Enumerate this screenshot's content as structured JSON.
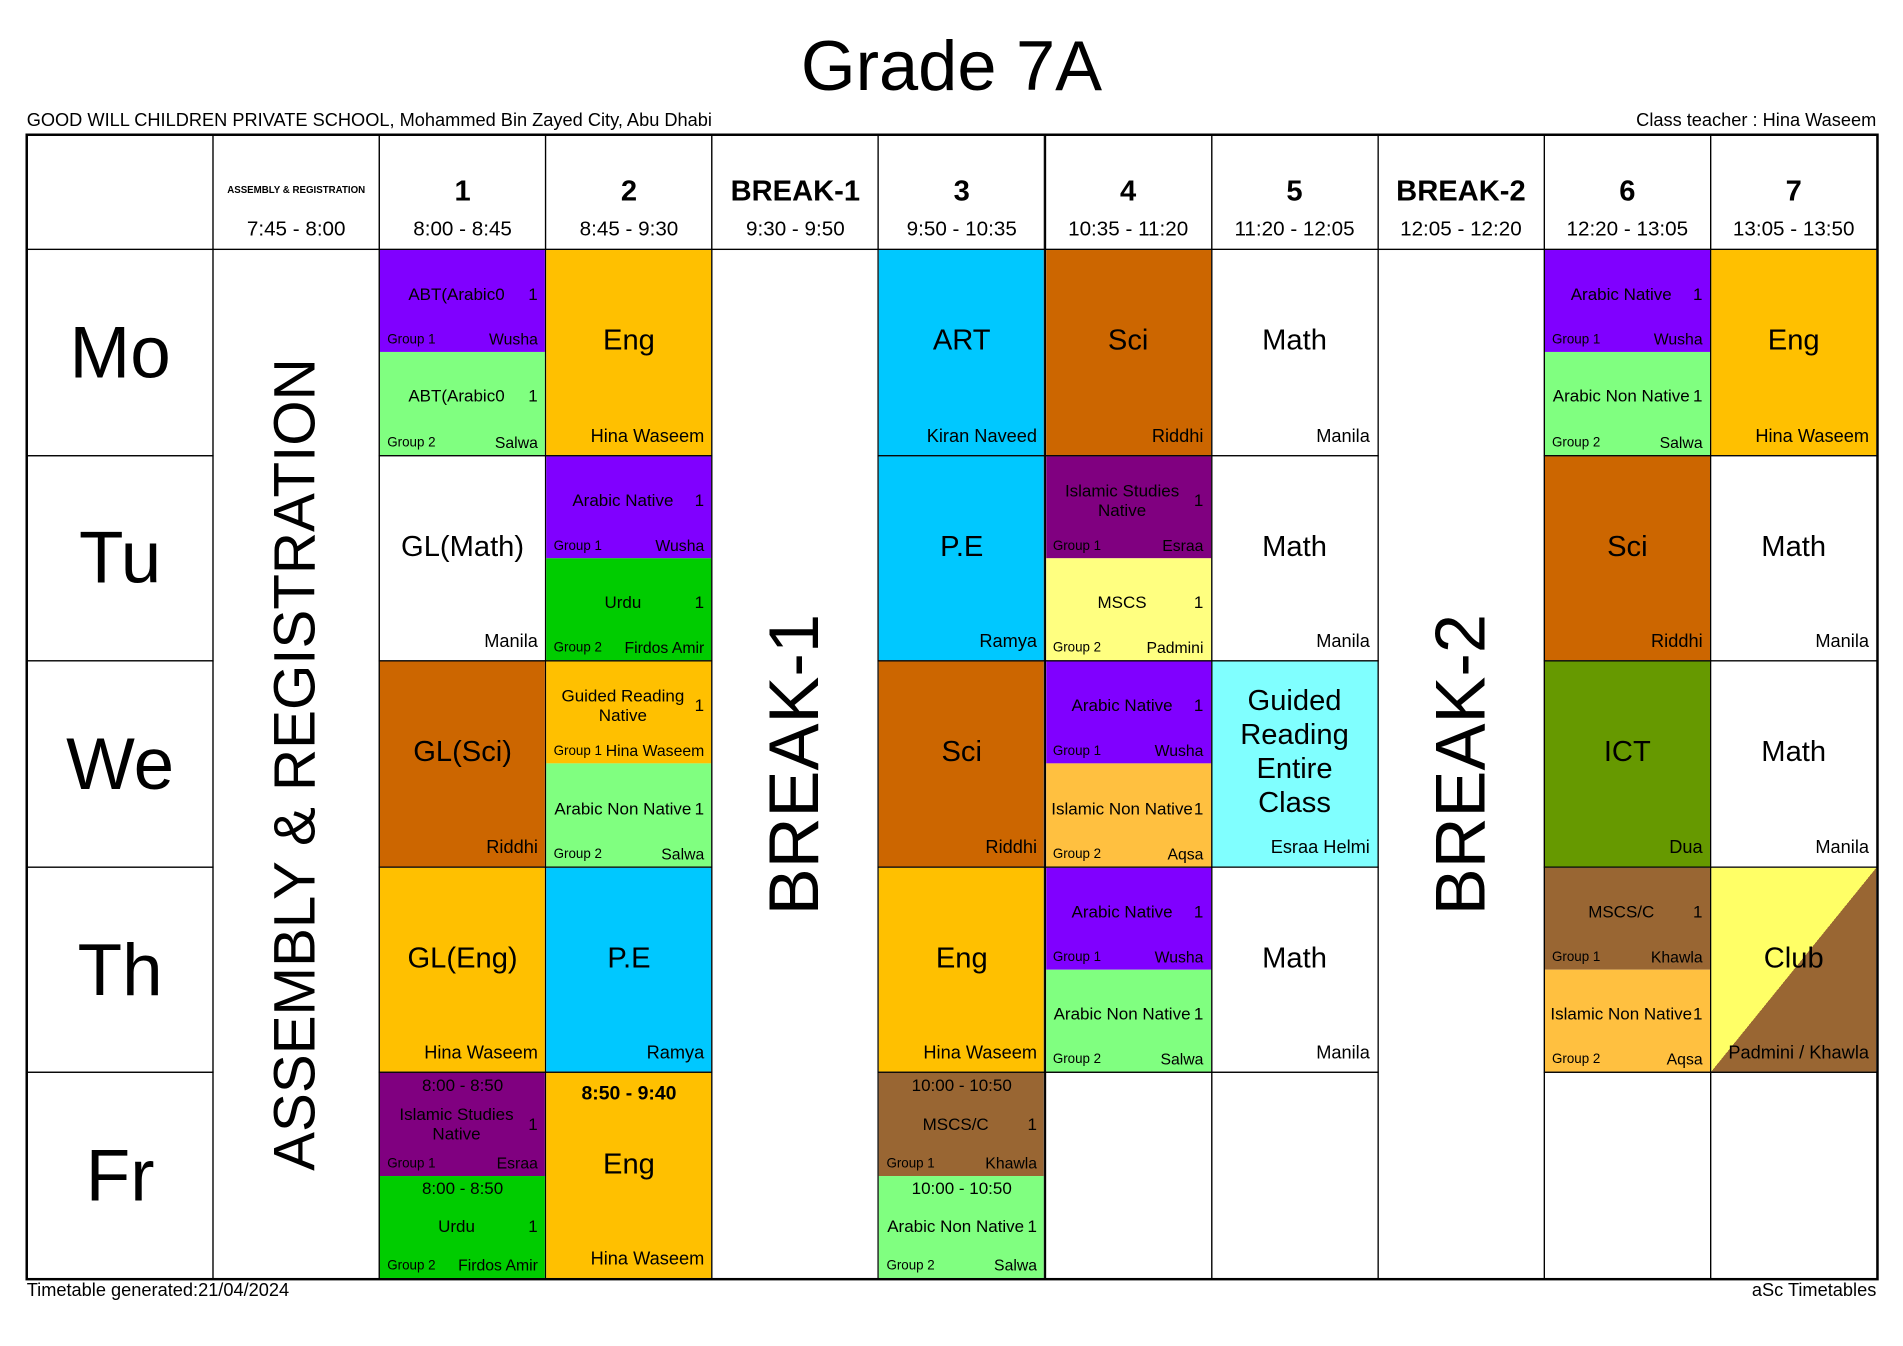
{
  "title": "Grade 7A",
  "school": "GOOD WILL CHILDREN PRIVATE SCHOOL, Mohammed Bin Zayed City, Abu Dhabi",
  "class_teacher": "Class teacher : Hina Waseem",
  "footer_left": "Timetable generated:21/04/2024",
  "footer_right": "aSc Timetables",
  "periods": [
    {
      "name": "ASSEMBLY & REGISTRATION",
      "time": "7:45 - 8:00",
      "banner": "ASSEMBLY & REGISTRATION"
    },
    {
      "name": "1",
      "time": "8:00 - 8:45"
    },
    {
      "name": "2",
      "time": "8:45 - 9:30"
    },
    {
      "name": "BREAK-1",
      "time": "9:30 - 9:50",
      "banner": "BREAK-1"
    },
    {
      "name": "3",
      "time": "9:50 - 10:35"
    },
    {
      "name": "4",
      "time": "10:35 - 11:20"
    },
    {
      "name": "5",
      "time": "11:20 - 12:05"
    },
    {
      "name": "BREAK-2",
      "time": "12:05 - 12:20",
      "banner": "BREAK-2"
    },
    {
      "name": "6",
      "time": "12:20 - 13:05"
    },
    {
      "name": "7",
      "time": "13:05 - 13:50"
    }
  ],
  "days": [
    {
      "name": "Mo",
      "cells": [
        [
          {
            "subject": "ABT(Arabic0",
            "count": 1,
            "group": "Group 1",
            "teacher": "Wusha",
            "color": "#8000ff"
          },
          {
            "subject": "ABT(Arabic0",
            "count": 1,
            "group": "Group 2",
            "teacher": "Salwa",
            "color": "#80ff80"
          }
        ],
        [
          {
            "subject": "Eng",
            "teacher": "Hina Waseem",
            "color": "#ffc000"
          }
        ],
        [
          {
            "subject": "ART",
            "teacher": "Kiran Naveed",
            "color": "#00c8ff"
          }
        ],
        [
          {
            "subject": "Sci",
            "teacher": "Riddhi",
            "color": "#cc6600"
          }
        ],
        [
          {
            "subject": "Math",
            "teacher": "Manila",
            "color": "#ffffff"
          }
        ],
        [
          {
            "subject": "Arabic Native",
            "count": 1,
            "group": "Group 1",
            "teacher": "Wusha",
            "color": "#8000ff"
          },
          {
            "subject": "Arabic Non Native",
            "count": 1,
            "group": "Group 2",
            "teacher": "Salwa",
            "color": "#80ff80"
          }
        ],
        [
          {
            "subject": "Eng",
            "teacher": "Hina Waseem",
            "color": "#ffc000"
          }
        ]
      ]
    },
    {
      "name": "Tu",
      "cells": [
        [
          {
            "subject": "GL(Math)",
            "teacher": "Manila",
            "color": "#ffffff"
          }
        ],
        [
          {
            "subject": "Arabic Native",
            "count": 1,
            "group": "Group 1",
            "teacher": "Wusha",
            "color": "#8000ff"
          },
          {
            "subject": "Urdu",
            "count": 1,
            "group": "Group 2",
            "teacher": "Firdos Amir",
            "color": "#00cc00"
          }
        ],
        [
          {
            "subject": "P.E",
            "teacher": "Ramya",
            "color": "#00c8ff"
          }
        ],
        [
          {
            "subject": "Islamic Studies Native",
            "count": 1,
            "group": "Group 1",
            "teacher": "Esraa",
            "color": "#800080"
          },
          {
            "subject": "MSCS",
            "count": 1,
            "group": "Group 2",
            "teacher": "Padmini",
            "color": "#ffff80"
          }
        ],
        [
          {
            "subject": "Math",
            "teacher": "Manila",
            "color": "#ffffff"
          }
        ],
        [
          {
            "subject": "Sci",
            "teacher": "Riddhi",
            "color": "#cc6600"
          }
        ],
        [
          {
            "subject": "Math",
            "teacher": "Manila",
            "color": "#ffffff"
          }
        ]
      ]
    },
    {
      "name": "We",
      "cells": [
        [
          {
            "subject": "GL(Sci)",
            "teacher": "Riddhi",
            "color": "#cc6600"
          }
        ],
        [
          {
            "subject": "Guided Reading Native",
            "count": 1,
            "group": "Group 1",
            "teacher": "Hina Waseem",
            "color": "#ffc000"
          },
          {
            "subject": "Arabic Non Native",
            "count": 1,
            "group": "Group 2",
            "teacher": "Salwa",
            "color": "#80ff80"
          }
        ],
        [
          {
            "subject": "Sci",
            "teacher": "Riddhi",
            "color": "#cc6600"
          }
        ],
        [
          {
            "subject": "Arabic Native",
            "count": 1,
            "group": "Group 1",
            "teacher": "Wusha",
            "color": "#8000ff"
          },
          {
            "subject": "Islamic Non Native",
            "count": 1,
            "group": "Group 2",
            "teacher": "Aqsa",
            "color": "#ffc040"
          }
        ],
        [
          {
            "subject": "Guided Reading Entire Class",
            "teacher": "Esraa Helmi",
            "color": "#80ffff"
          }
        ],
        [
          {
            "subject": "ICT",
            "teacher": "Dua",
            "color": "#669900"
          }
        ],
        [
          {
            "subject": "Math",
            "teacher": "Manila",
            "color": "#ffffff"
          }
        ]
      ]
    },
    {
      "name": "Th",
      "cells": [
        [
          {
            "subject": "GL(Eng)",
            "teacher": "Hina Waseem",
            "color": "#ffc000"
          }
        ],
        [
          {
            "subject": "P.E",
            "teacher": "Ramya",
            "color": "#00c8ff"
          }
        ],
        [
          {
            "subject": "Eng",
            "teacher": "Hina Waseem",
            "color": "#ffc000"
          }
        ],
        [
          {
            "subject": "Arabic Native",
            "count": 1,
            "group": "Group 1",
            "teacher": "Wusha",
            "color": "#8000ff"
          },
          {
            "subject": "Arabic Non Native",
            "count": 1,
            "group": "Group 2",
            "teacher": "Salwa",
            "color": "#80ff80"
          }
        ],
        [
          {
            "subject": "Math",
            "teacher": "Manila",
            "color": "#ffffff"
          }
        ],
        [
          {
            "subject": "MSCS/C",
            "count": 1,
            "group": "Group 1",
            "teacher": "Khawla",
            "color": "#996633"
          },
          {
            "subject": "Islamic Non Native",
            "count": 1,
            "group": "Group 2",
            "teacher": "Aqsa",
            "color": "#ffc040"
          }
        ],
        [
          {
            "subject": "Club",
            "teacher": "Padmini / Khawla",
            "colors": [
              "#ffff66",
              "#996633"
            ]
          }
        ]
      ]
    },
    {
      "name": "Fr",
      "cells": [
        [
          {
            "time": "8:00 - 8:50",
            "subject": "Islamic Studies Native",
            "count": 1,
            "group": "Group 1",
            "teacher": "Esraa",
            "color": "#800080"
          },
          {
            "time": "8:00 - 8:50",
            "subject": "Urdu",
            "count": 1,
            "group": "Group 2",
            "teacher": "Firdos Amir",
            "color": "#00cc00"
          }
        ],
        [
          {
            "time": "8:50 - 9:40",
            "subject": "Eng",
            "teacher": "Hina Waseem",
            "color": "#ffc000"
          }
        ],
        [
          {
            "time": "10:00 - 10:50",
            "subject": "MSCS/C",
            "count": 1,
            "group": "Group 1",
            "teacher": "Khawla",
            "color": "#996633"
          },
          {
            "time": "10:00 - 10:50",
            "subject": "Arabic Non Native",
            "count": 1,
            "group": "Group 2",
            "teacher": "Salwa",
            "color": "#80ff80"
          }
        ],
        [],
        [],
        [],
        []
      ]
    }
  ]
}
